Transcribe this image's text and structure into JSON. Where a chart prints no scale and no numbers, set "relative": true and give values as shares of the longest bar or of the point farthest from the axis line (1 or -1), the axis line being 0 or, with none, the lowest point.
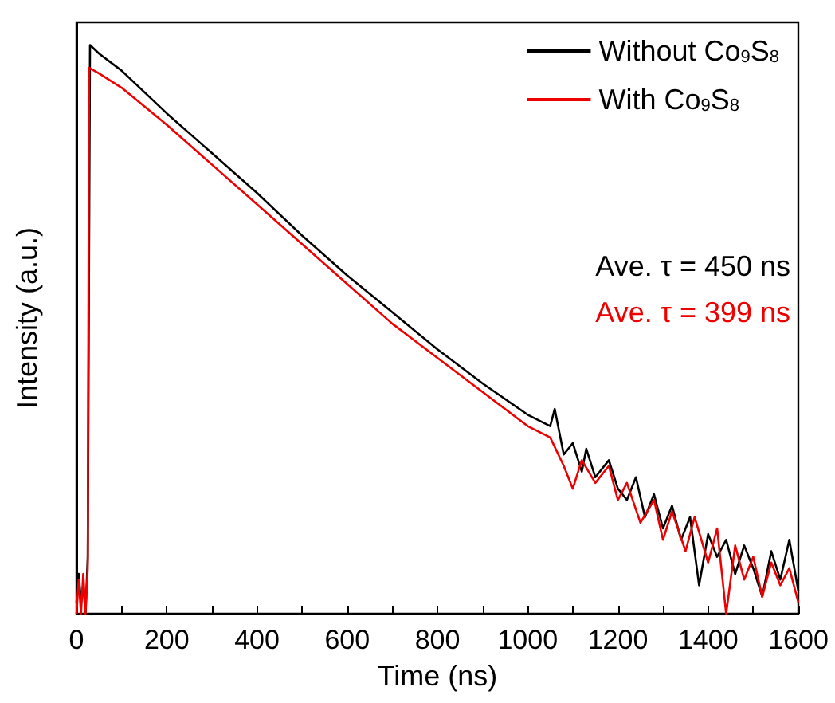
{
  "chart_data": {
    "type": "line",
    "relative": true,
    "xlabel": "Time (ns)",
    "ylabel": "Intensity (a.u.)",
    "xlim": [
      0,
      1600
    ],
    "xticks": [
      0,
      200,
      400,
      600,
      800,
      1000,
      1200,
      1400,
      1600
    ],
    "grid": false,
    "legend": "top right",
    "marker": "none",
    "line_style": "solid",
    "annotations": [
      "Ave. τ = 450 ns",
      "Ave. τ = 399 ns"
    ],
    "series": [
      {
        "name": "Without Co$_{9}$S$_{8}$",
        "color": "#000000",
        "x": [
          0,
          5,
          10,
          15,
          20,
          25,
          30,
          50,
          100,
          200,
          300,
          400,
          500,
          600,
          700,
          800,
          900,
          1000,
          1050,
          1060,
          1080,
          1100,
          1120,
          1130,
          1150,
          1180,
          1200,
          1220,
          1240,
          1260,
          1280,
          1300,
          1320,
          1340,
          1360,
          1380,
          1400,
          1420,
          1440,
          1460,
          1480,
          1500,
          1520,
          1540,
          1560,
          1580,
          1600
        ],
        "values": [
          0.02,
          0.07,
          0.02,
          0.05,
          0.0,
          0.1,
          1.0,
          0.985,
          0.955,
          0.88,
          0.81,
          0.74,
          0.665,
          0.595,
          0.53,
          0.465,
          0.405,
          0.35,
          0.33,
          0.36,
          0.28,
          0.3,
          0.25,
          0.29,
          0.24,
          0.27,
          0.22,
          0.2,
          0.24,
          0.17,
          0.21,
          0.15,
          0.19,
          0.13,
          0.17,
          0.05,
          0.14,
          0.1,
          0.13,
          0.07,
          0.12,
          0.08,
          0.03,
          0.11,
          0.06,
          0.13,
          0.04
        ]
      },
      {
        "name": "With Co$_{9}$S$_{8}$",
        "color": "#ee0000",
        "x": [
          0,
          5,
          10,
          15,
          20,
          25,
          28,
          50,
          100,
          200,
          300,
          400,
          500,
          600,
          700,
          800,
          900,
          1000,
          1050,
          1080,
          1100,
          1120,
          1150,
          1180,
          1200,
          1220,
          1250,
          1280,
          1300,
          1320,
          1350,
          1370,
          1400,
          1420,
          1440,
          1460,
          1480,
          1500,
          1520,
          1540,
          1560,
          1580,
          1600
        ],
        "values": [
          0.0,
          0.06,
          0.0,
          0.07,
          0.0,
          0.08,
          0.96,
          0.95,
          0.925,
          0.86,
          0.79,
          0.72,
          0.65,
          0.58,
          0.51,
          0.45,
          0.39,
          0.33,
          0.31,
          0.26,
          0.22,
          0.27,
          0.23,
          0.26,
          0.2,
          0.23,
          0.16,
          0.2,
          0.13,
          0.18,
          0.11,
          0.17,
          0.09,
          0.15,
          0.0,
          0.12,
          0.06,
          0.1,
          0.03,
          0.09,
          0.05,
          0.08,
          0.02
        ]
      }
    ]
  }
}
